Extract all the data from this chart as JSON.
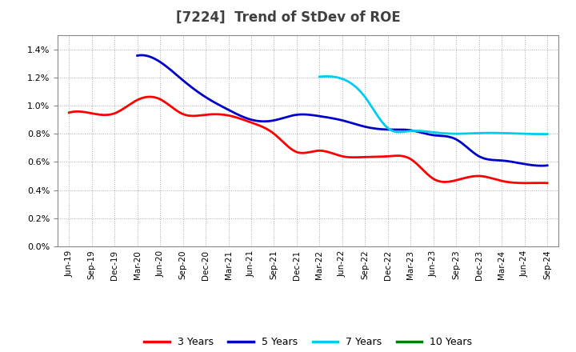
{
  "title": "[7224]  Trend of StDev of ROE",
  "title_fontsize": 12,
  "title_color": "#404040",
  "background_color": "#ffffff",
  "plot_bg_color": "#ffffff",
  "grid_color": "#aaaaaa",
  "ylim": [
    0.0,
    0.015
  ],
  "yticks": [
    0.0,
    0.002,
    0.004,
    0.006,
    0.008,
    0.01,
    0.012,
    0.014
  ],
  "series": {
    "3 Years": {
      "color": "#ff0000",
      "values": [
        0.0095,
        0.00945,
        0.00945,
        0.0104,
        0.01045,
        0.0094,
        0.00935,
        0.0093,
        0.0088,
        0.008,
        0.0067,
        0.0068,
        0.0064,
        0.00635,
        0.0064,
        0.0062,
        0.0048,
        0.0047,
        0.005,
        0.00465,
        0.0045,
        0.0045
      ]
    },
    "5 Years": {
      "color": "#0000cc",
      "values": [
        null,
        null,
        null,
        0.01355,
        0.0131,
        0.0118,
        0.0106,
        0.0097,
        0.009,
        0.00895,
        0.00935,
        0.00925,
        0.00895,
        0.0085,
        0.0083,
        0.00825,
        0.0079,
        0.0076,
        0.0064,
        0.0061,
        0.00585,
        0.00575
      ]
    },
    "7 Years": {
      "color": "#00ccee",
      "values": [
        null,
        null,
        null,
        null,
        null,
        null,
        null,
        null,
        null,
        null,
        null,
        0.01205,
        0.0119,
        0.0106,
        0.0084,
        0.0082,
        0.0081,
        0.008,
        0.00805,
        0.00805,
        0.008,
        0.00798
      ]
    },
    "10 Years": {
      "color": "#008000",
      "values": [
        null,
        null,
        null,
        null,
        null,
        null,
        null,
        null,
        null,
        null,
        null,
        null,
        null,
        null,
        null,
        null,
        null,
        null,
        null,
        null,
        null,
        null
      ]
    }
  },
  "xtick_labels": [
    "Jun-19",
    "Sep-19",
    "Dec-19",
    "Mar-20",
    "Jun-20",
    "Sep-20",
    "Dec-20",
    "Mar-21",
    "Jun-21",
    "Sep-21",
    "Dec-21",
    "Mar-22",
    "Jun-22",
    "Sep-22",
    "Dec-22",
    "Mar-23",
    "Jun-23",
    "Sep-23",
    "Dec-23",
    "Mar-24",
    "Jun-24",
    "Sep-24"
  ],
  "legend_labels": [
    "3 Years",
    "5 Years",
    "7 Years",
    "10 Years"
  ],
  "legend_colors": [
    "#ff0000",
    "#0000cc",
    "#00ccee",
    "#008000"
  ]
}
